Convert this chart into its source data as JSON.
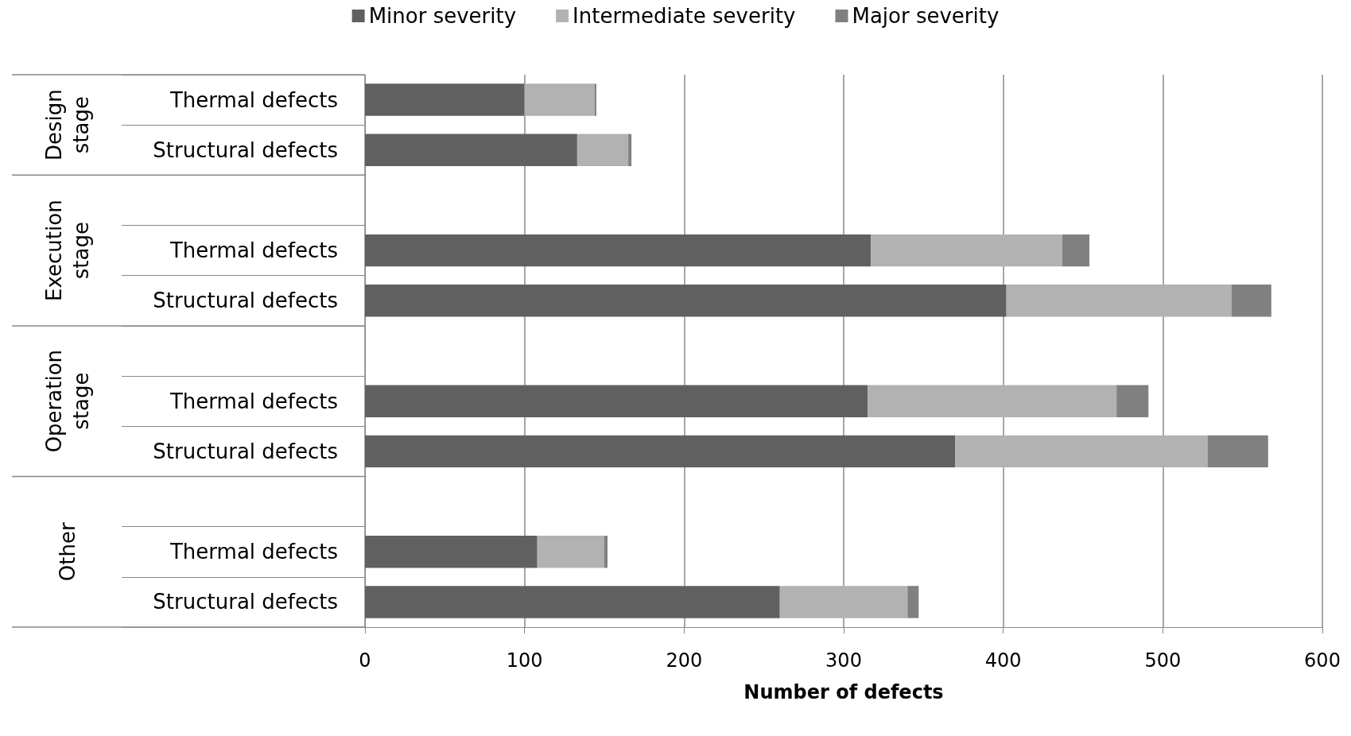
{
  "chart_data": {
    "type": "bar",
    "orientation": "horizontal",
    "stacked": true,
    "xlabel": "Number of defects",
    "categories": [
      "Thermal defects",
      "Structural defects",
      null,
      "Thermal defects",
      "Structural defects",
      null,
      "Thermal defects",
      "Structural defects",
      null,
      "Thermal defects",
      "Structural defects"
    ],
    "annotations": [
      "Design stage",
      "Execution stage",
      "Operation stage",
      "Other"
    ],
    "series": [
      {
        "name": "Minor severity",
        "color": "#606060",
        "values": [
          100,
          133,
          null,
          317,
          402,
          null,
          315,
          370,
          null,
          108,
          260
        ]
      },
      {
        "name": "Intermediate severity",
        "color": "#b2b2b2",
        "values": [
          44,
          32,
          null,
          120,
          141,
          null,
          156,
          158,
          null,
          42,
          80
        ]
      },
      {
        "name": "Major severity",
        "color": "#808080",
        "values": [
          1,
          2,
          null,
          17,
          25,
          null,
          20,
          38,
          null,
          2,
          7
        ]
      }
    ],
    "xlim": [
      0,
      600
    ],
    "xticks": [
      0,
      100,
      200,
      300,
      400,
      500,
      600
    ],
    "grid": "x",
    "legend": "top"
  }
}
